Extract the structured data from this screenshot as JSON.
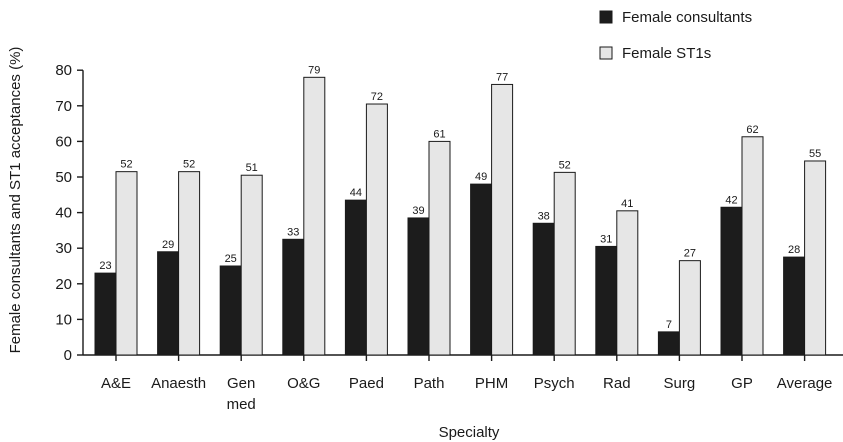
{
  "chart_data": {
    "type": "bar",
    "ylabel": "Female consultants and ST1 acceptances (%)",
    "xlabel": "Specialty",
    "ylim": [
      0,
      80
    ],
    "yticks": [
      0,
      10,
      20,
      30,
      40,
      50,
      60,
      70,
      80
    ],
    "categories": [
      [
        "A&E"
      ],
      [
        "Anaesth"
      ],
      [
        "Gen",
        "med"
      ],
      [
        "O&G"
      ],
      [
        "Paed"
      ],
      [
        "Path"
      ],
      [
        "PHM"
      ],
      [
        "Psych"
      ],
      [
        "Rad"
      ],
      [
        "Surg"
      ],
      [
        "GP"
      ],
      [
        "Average"
      ]
    ],
    "series": [
      {
        "name": "Female consultants",
        "color": "#1c1c1c",
        "values": [
          23,
          29,
          25,
          33,
          44,
          39,
          49,
          38,
          31,
          7,
          42,
          28
        ],
        "heights": [
          23,
          29,
          25,
          32.5,
          43.5,
          38.5,
          48,
          37,
          30.5,
          6.5,
          41.5,
          27.5
        ]
      },
      {
        "name": "Female ST1s",
        "color": "#e6e6e6",
        "values": [
          52,
          52,
          51,
          79,
          72,
          61,
          77,
          52,
          41,
          27,
          62,
          55
        ],
        "heights": [
          51.5,
          51.5,
          50.5,
          78,
          70.5,
          60,
          76,
          51.3,
          40.5,
          26.5,
          61.3,
          54.5
        ]
      }
    ],
    "legend_position": "top-right",
    "grid": false
  }
}
